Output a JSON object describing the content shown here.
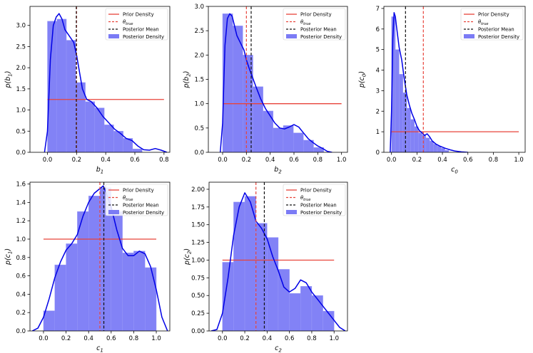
{
  "chart_data": [
    {
      "type": "histogram+line",
      "xlabel": "b",
      "xlabel_sub": "1",
      "ylabel": "p(b",
      "ylabel_sub": "1",
      "ylabel_close": ")",
      "xlim": [
        -0.12,
        0.84
      ],
      "ylim": [
        0,
        3.45
      ],
      "xticks": [
        0.0,
        0.2,
        0.4,
        0.6,
        0.8
      ],
      "yticks": [
        0.0,
        0.5,
        1.0,
        1.5,
        2.0,
        2.5,
        3.0
      ],
      "bins": [
        0.0,
        0.065,
        0.13,
        0.195,
        0.26,
        0.325,
        0.39,
        0.455,
        0.52,
        0.585,
        0.65
      ],
      "hist_values": [
        3.1,
        3.15,
        2.65,
        1.65,
        1.2,
        1.05,
        0.65,
        0.5,
        0.33,
        0.08
      ],
      "kde_x": [
        -0.02,
        0.0,
        0.02,
        0.04,
        0.06,
        0.08,
        0.1,
        0.12,
        0.14,
        0.16,
        0.18,
        0.2,
        0.22,
        0.24,
        0.27,
        0.3,
        0.34,
        0.38,
        0.42,
        0.46,
        0.5,
        0.54,
        0.58,
        0.62,
        0.66,
        0.7,
        0.74,
        0.78,
        0.82
      ],
      "kde_y": [
        0.0,
        0.5,
        2.2,
        3.0,
        3.2,
        3.28,
        3.15,
        2.9,
        2.8,
        2.7,
        2.6,
        2.3,
        1.9,
        1.5,
        1.25,
        1.2,
        1.05,
        0.85,
        0.7,
        0.55,
        0.45,
        0.33,
        0.28,
        0.15,
        0.06,
        0.05,
        0.09,
        0.05,
        0.0
      ],
      "prior_x": [
        0.0,
        0.8
      ],
      "prior_y": 1.25,
      "theta_true": 0.2,
      "posterior_mean": 0.198
    },
    {
      "type": "histogram+line",
      "xlabel": "b",
      "xlabel_sub": "2",
      "ylabel": "p(b",
      "ylabel_sub": "2",
      "ylabel_close": ")",
      "xlim": [
        -0.12,
        1.05
      ],
      "ylim": [
        0,
        3.0
      ],
      "xticks": [
        0.0,
        0.2,
        0.4,
        0.6,
        0.8,
        1.0
      ],
      "yticks": [
        0.0,
        0.5,
        1.0,
        1.5,
        2.0,
        2.5,
        3.0
      ],
      "bins": [
        0.0,
        0.085,
        0.17,
        0.255,
        0.34,
        0.425,
        0.51,
        0.595,
        0.68,
        0.765,
        0.85
      ],
      "hist_values": [
        2.85,
        2.6,
        2.0,
        1.35,
        0.85,
        0.5,
        0.55,
        0.4,
        0.25,
        0.1
      ],
      "kde_x": [
        -0.02,
        0.0,
        0.02,
        0.04,
        0.06,
        0.08,
        0.1,
        0.12,
        0.14,
        0.16,
        0.18,
        0.2,
        0.22,
        0.25,
        0.28,
        0.32,
        0.36,
        0.4,
        0.44,
        0.48,
        0.52,
        0.56,
        0.6,
        0.64,
        0.68,
        0.72,
        0.76,
        0.8,
        0.84,
        0.88,
        0.92
      ],
      "kde_y": [
        0.0,
        0.6,
        2.2,
        2.75,
        2.85,
        2.8,
        2.6,
        2.4,
        2.3,
        2.2,
        2.1,
        1.9,
        1.75,
        1.55,
        1.35,
        1.1,
        0.9,
        0.75,
        0.6,
        0.5,
        0.48,
        0.52,
        0.57,
        0.52,
        0.4,
        0.28,
        0.2,
        0.13,
        0.08,
        0.02,
        0.0
      ],
      "prior_x": [
        0.0,
        1.0
      ],
      "prior_y": 1.0,
      "theta_true": 0.2,
      "posterior_mean": 0.24
    },
    {
      "type": "histogram+line",
      "xlabel": "c",
      "xlabel_sub": "0",
      "ylabel": "p(c",
      "ylabel_sub": "0",
      "ylabel_close": ")",
      "xlim": [
        -0.06,
        1.05
      ],
      "ylim": [
        0,
        7.1
      ],
      "xticks": [
        0.0,
        0.2,
        0.4,
        0.6,
        0.8,
        1.0
      ],
      "yticks": [
        0,
        1,
        2,
        3,
        4,
        5,
        6,
        7
      ],
      "bins": [
        0.0,
        0.03,
        0.06,
        0.09,
        0.12,
        0.15,
        0.18,
        0.21,
        0.24,
        0.27,
        0.3,
        0.33,
        0.36,
        0.39,
        0.42,
        0.45
      ],
      "hist_values": [
        6.6,
        5.0,
        3.8,
        2.9,
        2.15,
        1.6,
        1.25,
        0.95,
        0.85,
        0.7,
        0.55,
        0.4,
        0.3,
        0.2,
        0.1
      ],
      "kde_x": [
        -0.01,
        0.0,
        0.01,
        0.02,
        0.03,
        0.04,
        0.06,
        0.08,
        0.1,
        0.12,
        0.14,
        0.16,
        0.18,
        0.2,
        0.22,
        0.24,
        0.26,
        0.28,
        0.3,
        0.32,
        0.35,
        0.38,
        0.42,
        0.46,
        0.5,
        0.55,
        0.6
      ],
      "kde_y": [
        0.0,
        2.0,
        5.5,
        6.8,
        6.6,
        6.1,
        5.1,
        4.5,
        3.6,
        2.8,
        2.3,
        1.9,
        1.6,
        1.25,
        1.05,
        0.95,
        0.82,
        0.9,
        0.75,
        0.55,
        0.4,
        0.3,
        0.2,
        0.12,
        0.06,
        0.02,
        0.0
      ],
      "prior_x": [
        0.0,
        1.0
      ],
      "prior_y": 1.0,
      "theta_true": 0.25,
      "posterior_mean": 0.11
    },
    {
      "type": "histogram+line",
      "xlabel": "c",
      "xlabel_sub": "1",
      "ylabel": "p(c",
      "ylabel_sub": "1",
      "ylabel_close": ")",
      "xlim": [
        -0.12,
        1.12
      ],
      "ylim": [
        0,
        1.62
      ],
      "xticks": [
        0.0,
        0.2,
        0.4,
        0.6,
        0.8,
        1.0
      ],
      "yticks": [
        0.0,
        0.2,
        0.4,
        0.6,
        0.8,
        1.0,
        1.2,
        1.4,
        1.6
      ],
      "bins": [
        0.0,
        0.1,
        0.2,
        0.3,
        0.4,
        0.5,
        0.6,
        0.7,
        0.8,
        0.9,
        1.0
      ],
      "hist_values": [
        0.22,
        0.72,
        0.95,
        1.3,
        1.47,
        1.56,
        1.3,
        0.85,
        0.87,
        0.69
      ],
      "kde_x": [
        -0.1,
        -0.05,
        0.0,
        0.05,
        0.1,
        0.15,
        0.2,
        0.25,
        0.3,
        0.35,
        0.4,
        0.45,
        0.5,
        0.53,
        0.55,
        0.6,
        0.65,
        0.7,
        0.75,
        0.8,
        0.85,
        0.9,
        0.95,
        1.0,
        1.05,
        1.1
      ],
      "kde_y": [
        0.0,
        0.03,
        0.15,
        0.35,
        0.58,
        0.75,
        0.88,
        0.95,
        1.05,
        1.25,
        1.4,
        1.5,
        1.55,
        1.58,
        1.52,
        1.35,
        1.1,
        0.9,
        0.82,
        0.82,
        0.87,
        0.84,
        0.7,
        0.45,
        0.15,
        0.0
      ],
      "prior_x": [
        0.0,
        1.0
      ],
      "prior_y": 1.0,
      "theta_true": 0.5,
      "posterior_mean": 0.535
    },
    {
      "type": "histogram+line",
      "xlabel": "c",
      "xlabel_sub": "2",
      "ylabel": "p(c",
      "ylabel_sub": "2",
      "ylabel_close": ")",
      "xlim": [
        -0.12,
        1.12
      ],
      "ylim": [
        0,
        2.1
      ],
      "xticks": [
        0.0,
        0.2,
        0.4,
        0.6,
        0.8,
        1.0
      ],
      "yticks": [
        0.0,
        0.25,
        0.5,
        0.75,
        1.0,
        1.25,
        1.5,
        1.75,
        2.0
      ],
      "ytick_labels": [
        "0.00",
        "0.25",
        "0.50",
        "0.75",
        "1.00",
        "1.25",
        "1.50",
        "1.75",
        "2.00"
      ],
      "bins": [
        0.0,
        0.1,
        0.2,
        0.3,
        0.4,
        0.5,
        0.6,
        0.7,
        0.8,
        0.9,
        1.0
      ],
      "hist_values": [
        0.97,
        1.82,
        1.9,
        1.52,
        1.32,
        0.87,
        0.53,
        0.63,
        0.5,
        0.28
      ],
      "kde_x": [
        -0.1,
        -0.05,
        0.0,
        0.05,
        0.1,
        0.15,
        0.2,
        0.25,
        0.3,
        0.35,
        0.4,
        0.45,
        0.5,
        0.55,
        0.6,
        0.65,
        0.7,
        0.75,
        0.8,
        0.85,
        0.9,
        0.95,
        1.0,
        1.05,
        1.1
      ],
      "kde_y": [
        0.0,
        0.02,
        0.25,
        0.75,
        1.35,
        1.75,
        1.95,
        1.82,
        1.55,
        1.45,
        1.3,
        1.05,
        0.85,
        0.62,
        0.55,
        0.6,
        0.72,
        0.68,
        0.55,
        0.45,
        0.35,
        0.25,
        0.15,
        0.05,
        0.0
      ],
      "prior_x": [
        0.0,
        1.0
      ],
      "prior_y": 1.0,
      "theta_true": 0.3,
      "posterior_mean": 0.375
    }
  ],
  "legend": {
    "prior": "Prior Density",
    "theta_base": "θ",
    "theta_sub": "true",
    "mean": "Posterior Mean",
    "posterior": "Posterior Density"
  },
  "colors": {
    "prior": "#e8433a",
    "theta": "#e8433a",
    "mean": "#111111",
    "hist": "#7b7bf5",
    "kde": "#0000e6"
  }
}
